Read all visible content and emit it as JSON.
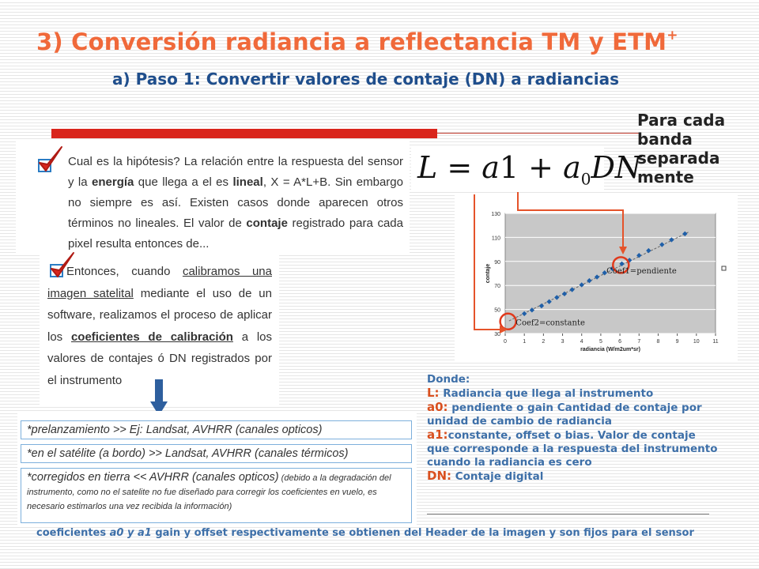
{
  "title": {
    "text": "3) Conversión radiancia a reflectancia TM y ETM",
    "sup": "+"
  },
  "subtitle": "a) Paso 1: Convertir valores de contaje (DN) a radiancias",
  "per_band": "Para cada banda separada mente",
  "panel1": {
    "t1": "Cual es la hipótesis? La relación entre la respuesta del sensor y la ",
    "b1": "energía",
    "t2": " que llega a el es ",
    "b2": "lineal",
    "t3": ", X = A*L+B. Sin embargo no siempre es así. Existen casos donde aparecen otros términos no lineales. El valor de ",
    "b3": "contaje",
    "t4": " registrado para cada pixel resulta entonces de..."
  },
  "panel2": {
    "t1": "Entonces, cuando ",
    "u1": "calibramos una imagen satelital",
    "t2": " mediante el uso de un software, realizamos el proceso de aplicar los ",
    "b1": "coeficientes de calibración",
    "t3": " a los valores de contajes ó DN registrados por el instrumento"
  },
  "panel3": {
    "item1": "*prelanzamiento >> Ej: Landsat, AVHRR (canales opticos)",
    "item2": "*en el satélite (a bordo) >> Landsat, AVHRR (canales térmicos)",
    "item3_main": "*corregidos en tierra << AVHRR (canales opticos)",
    "item3_small": " (debido a la degradación del instrumento, como no el satelite no fue diseñado para corregir los coeficientes en vuelo, es necesario estimarlos una vez recibida la información)"
  },
  "formula": {
    "L": "L",
    "eq": " = ",
    "a": "a",
    "s1": "1",
    "plus": " + ",
    "a0": "a",
    "s0": "0",
    "DN": "DN"
  },
  "chart_data": {
    "type": "scatter",
    "x": [
      1.0,
      1.4,
      1.9,
      2.3,
      2.7,
      3.1,
      3.5,
      4.0,
      4.4,
      4.8,
      5.2,
      5.6,
      6.1,
      6.5,
      7.0,
      7.5,
      8.2,
      8.7,
      9.4
    ],
    "y": [
      46.5,
      49.5,
      53,
      56.5,
      60,
      63,
      66.5,
      70.5,
      74,
      77,
      80.5,
      84,
      88,
      91,
      95,
      99,
      104,
      108,
      113
    ],
    "xlabel": "radiancia (W/m2um*sr)",
    "ylabel": "contaje",
    "xlim": [
      0,
      11
    ],
    "ylim": [
      30,
      130
    ],
    "x_ticks": [
      "0",
      "1",
      "2",
      "3",
      "4",
      "5",
      "6",
      "7",
      "8",
      "9",
      "10",
      "11"
    ],
    "y_ticks": [
      "30",
      "50",
      "70",
      "90",
      "110",
      "130"
    ],
    "annotations": [
      "Coef1=pendiente",
      "Coef2=constante"
    ],
    "grid": true,
    "marker_color": "#1f5fa8",
    "plot_bg": "#c8c8c8"
  },
  "donde": {
    "head": "Donde:",
    "L_key": "L:",
    "L_text": " Radiancia que llega al instrumento",
    "a0_key": "a0:",
    "a0_text": " pendiente o gain Cantidad de contaje por unidad de cambio de radiancia",
    "a1_key": "a1:",
    "a1_text": "constante, offset o bias. Valor de contaje que corresponde a la respuesta del instrumento cuando la radiancia es cero",
    "dn_key": "DN:",
    "dn_text": " Contaje digital"
  },
  "footer": {
    "t1": "coeficientes ",
    "i1": "a0 y a1",
    "t2": " gain y offset respectivamente se obtienen del Header de la imagen y son fijos para el sensor"
  },
  "colors": {
    "title": "#f0693a",
    "subtitle": "#1f4e8c",
    "accent_red": "#d9251c",
    "blue_text": "#3d6fa8",
    "check_red": "#d9251c"
  }
}
